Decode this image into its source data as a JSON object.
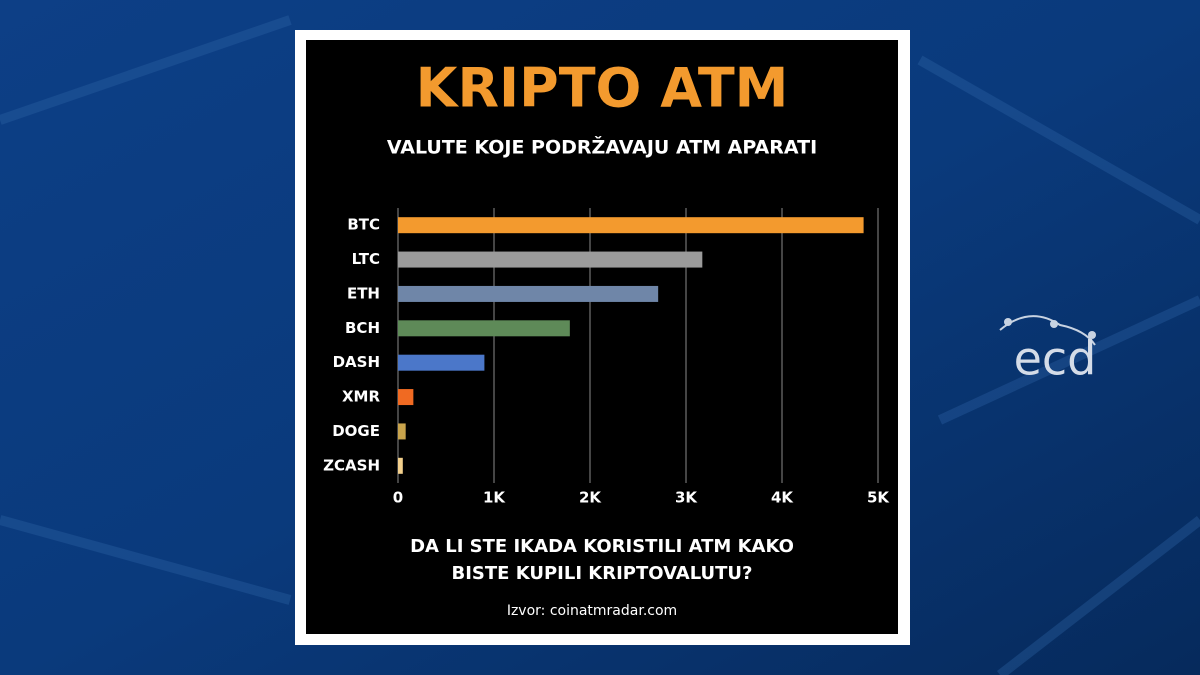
{
  "chart_data": {
    "type": "hbar",
    "title": "KRIPTO ATM",
    "subtitle": "VALUTE KOJE PODRŽAVAJU ATM APARATI",
    "categories": [
      "BTC",
      "LTC",
      "ETH",
      "BCH",
      "DASH",
      "XMR",
      "DOGE",
      "ZCASH"
    ],
    "values": [
      4850,
      3170,
      2710,
      1790,
      900,
      160,
      80,
      50
    ],
    "colors": [
      "#f39a2e",
      "#9b9b9b",
      "#6f86a8",
      "#5e8a58",
      "#4b77c9",
      "#f06a22",
      "#c9a44c",
      "#f3d08c"
    ],
    "xlim": [
      0,
      5000
    ],
    "xticks": [
      0,
      {
        "value": 1000,
        "label": "1K"
      },
      {
        "value": 2000,
        "label": "2K"
      },
      {
        "value": 3000,
        "label": "3K"
      },
      {
        "value": 4000,
        "label": "4K"
      },
      {
        "value": 5000,
        "label": "5K"
      }
    ],
    "grid": true,
    "question": [
      "DA LI STE IKADA KORISTILI ATM KAKO",
      "BISTE KUPILI KRIPTOVALUTU?"
    ],
    "source": "Izvor: coinatmradar.com"
  },
  "watermark": "ecd"
}
